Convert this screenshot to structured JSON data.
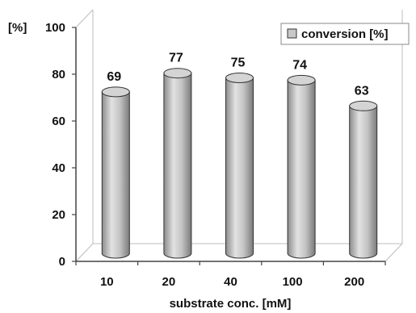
{
  "chart_data": {
    "type": "bar",
    "categories": [
      "10",
      "20",
      "40",
      "100",
      "200"
    ],
    "series": [
      {
        "name": "conversion [%]",
        "values": [
          69,
          77,
          75,
          74,
          63
        ]
      }
    ],
    "xlabel": "substrate conc. [mM]",
    "ylabel": "[%]",
    "ylim": [
      0,
      100
    ],
    "yticks": [
      "0",
      "20",
      "40",
      "60",
      "80",
      "100"
    ],
    "data_labels": [
      "69",
      "77",
      "75",
      "74",
      "63"
    ],
    "grid": false,
    "legend_position": "top-right",
    "bar_style": "3d-cylinder",
    "colors": {
      "bar": "#b8b8b8",
      "axis": "#555555",
      "text": "#111111"
    }
  }
}
